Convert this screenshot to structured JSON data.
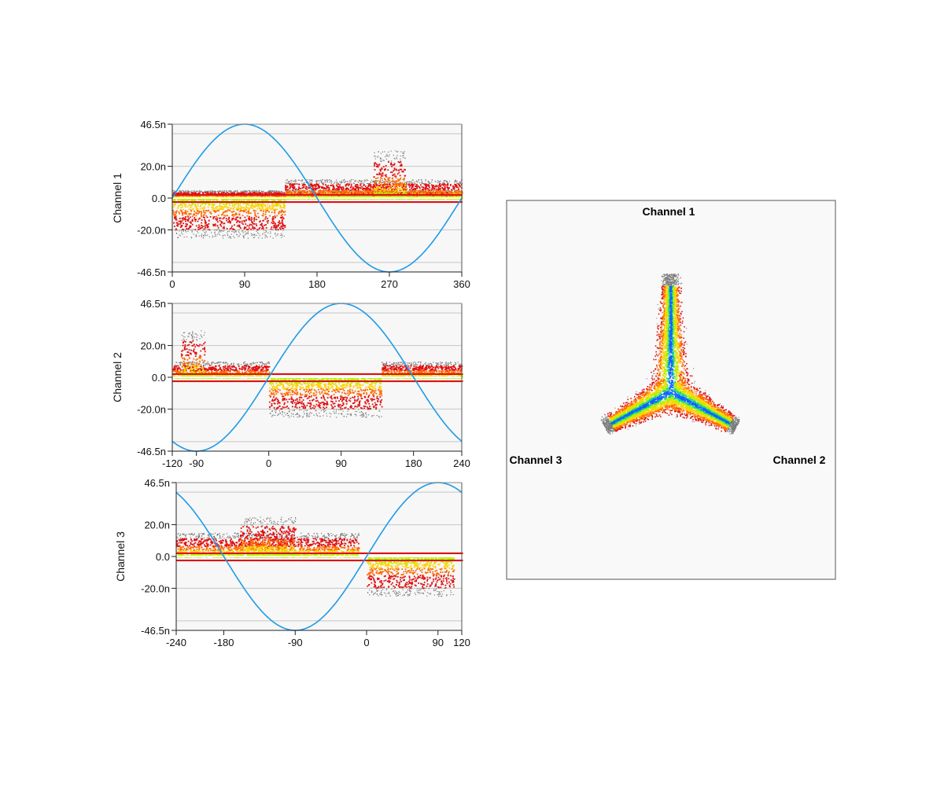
{
  "chart_data": [
    {
      "type": "scatter",
      "ylabel": "Channel 1",
      "ylim": [
        -46.5,
        46.5
      ],
      "y_ticks": [
        "46.5n",
        "20.0n",
        "0.0",
        "-20.0n",
        "-46.5n"
      ],
      "xlim": [
        0,
        360
      ],
      "x_ticks": [
        0,
        90,
        180,
        270,
        360
      ],
      "reference_sine": {
        "amplitude": 46.5,
        "period_deg": 360,
        "peak_at_deg": 90
      },
      "density_regions": [
        {
          "x_range": [
            0,
            140
          ],
          "y_range": [
            -25,
            0
          ]
        },
        {
          "x_range": [
            0,
            360
          ],
          "y_range": [
            0,
            5
          ]
        },
        {
          "x_range": [
            140,
            360
          ],
          "y_range": [
            0,
            12
          ]
        },
        {
          "x_range": [
            250,
            290
          ],
          "y_range": [
            0,
            30
          ]
        }
      ],
      "grid": true
    },
    {
      "type": "scatter",
      "ylabel": "Channel 2",
      "ylim": [
        -46.5,
        46.5
      ],
      "y_ticks": [
        "46.5n",
        "20.0n",
        "0.0",
        "-20.0n",
        "-46.5n"
      ],
      "xlim": [
        -120,
        240
      ],
      "x_ticks": [
        -120,
        -90,
        0,
        90,
        180,
        240
      ],
      "reference_sine": {
        "amplitude": 46.5,
        "period_deg": 360,
        "peak_at_deg": 90
      },
      "density_regions": [
        {
          "x_range": [
            -120,
            0
          ],
          "y_range": [
            0,
            10
          ]
        },
        {
          "x_range": [
            -110,
            -80
          ],
          "y_range": [
            0,
            30
          ]
        },
        {
          "x_range": [
            0,
            140
          ],
          "y_range": [
            -25,
            0
          ]
        },
        {
          "x_range": [
            140,
            240
          ],
          "y_range": [
            0,
            10
          ]
        }
      ],
      "grid": true
    },
    {
      "type": "scatter",
      "ylabel": "Channel 3",
      "ylim": [
        -46.5,
        46.5
      ],
      "y_ticks": [
        "46.5n",
        "20.0n",
        "0.0",
        "-20.0n",
        "-46.5n"
      ],
      "xlim": [
        -240,
        120
      ],
      "x_ticks": [
        -240,
        -180,
        -90,
        0,
        90,
        120
      ],
      "reference_sine": {
        "amplitude": 46.5,
        "period_deg": 360,
        "peak_at_deg": 90
      },
      "density_regions": [
        {
          "x_range": [
            -240,
            -10
          ],
          "y_range": [
            0,
            15
          ]
        },
        {
          "x_range": [
            -160,
            -90
          ],
          "y_range": [
            0,
            25
          ]
        },
        {
          "x_range": [
            0,
            110
          ],
          "y_range": [
            -25,
            0
          ]
        }
      ],
      "grid": true
    },
    {
      "type": "scatter",
      "title": "",
      "axis_labels": {
        "top": "Channel 1",
        "bottom_right": "Channel 2",
        "bottom_left": "Channel 3"
      },
      "arms": [
        {
          "direction": "Channel 1",
          "length": 1.0
        },
        {
          "direction": "Channel 2",
          "length": 0.65
        },
        {
          "direction": "Channel 3",
          "length": 0.65
        }
      ]
    }
  ],
  "colors": {
    "sine": "#1e9be8",
    "heat": [
      "#7a7a7a",
      "#e01010",
      "#ff6a00",
      "#ffd200",
      "#b8f000",
      "#18d090",
      "#1060ff"
    ],
    "plot_bg": "#f7f7f7",
    "gridline": "#c6c6c6"
  }
}
